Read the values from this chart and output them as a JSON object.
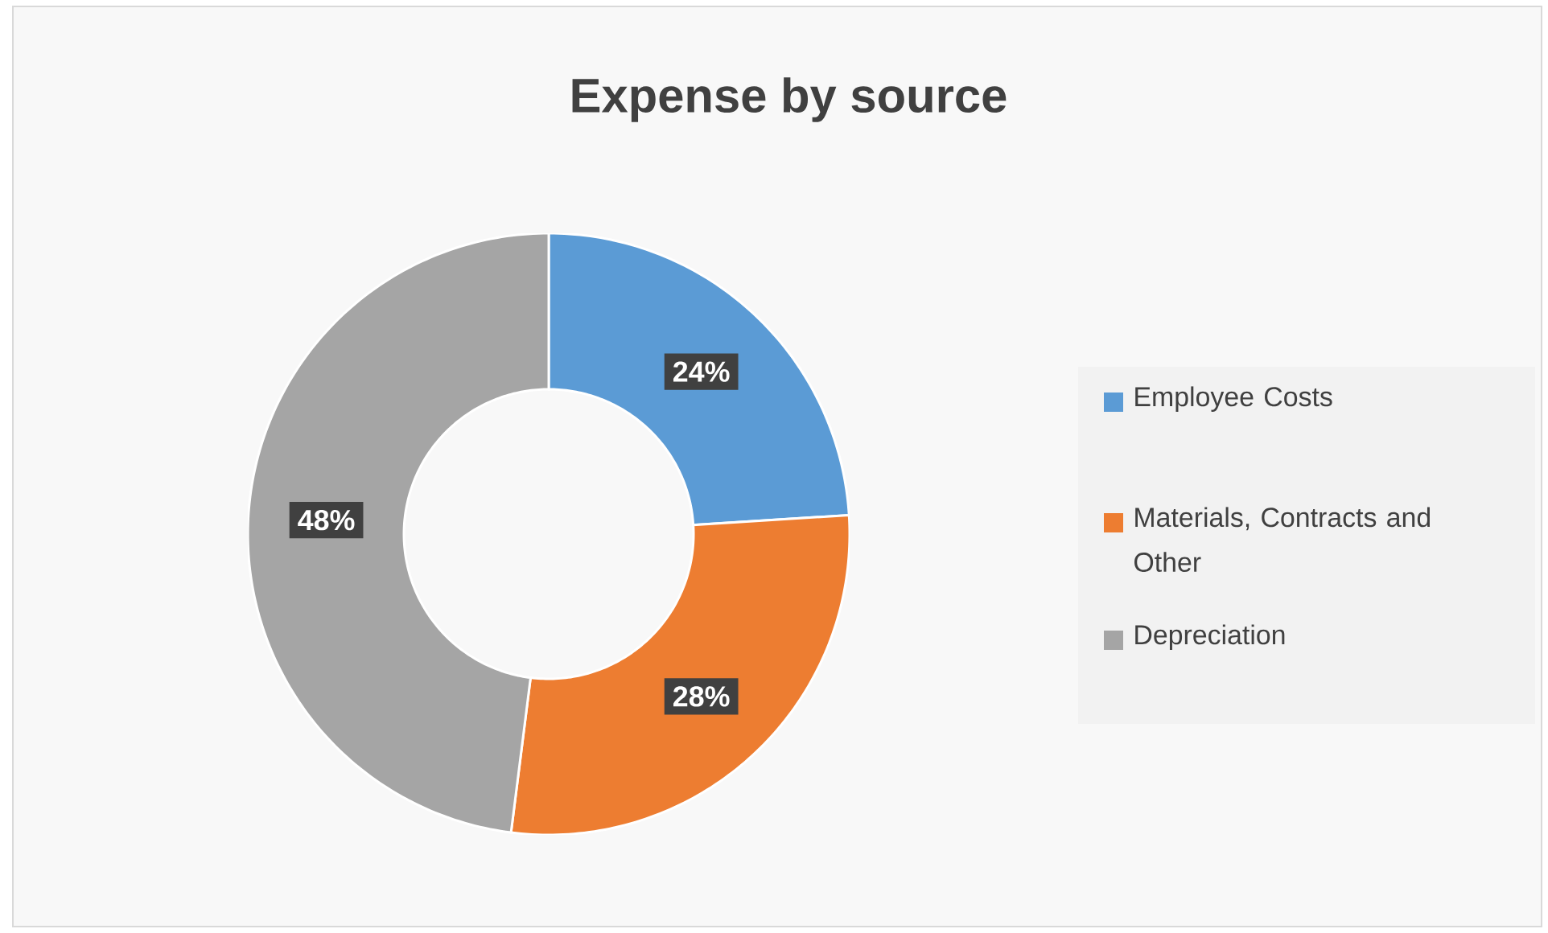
{
  "chart_data": {
    "type": "donut",
    "title": "Expense by source",
    "categories": [
      "Employee Costs",
      "Materials, Contracts and Other",
      "Depreciation"
    ],
    "values": [
      24,
      28,
      48
    ],
    "colors": [
      "#5b9bd5",
      "#ed7d31",
      "#a5a5a5"
    ],
    "value_labels": [
      "24%",
      "28%",
      "48%"
    ],
    "legend": "right"
  }
}
